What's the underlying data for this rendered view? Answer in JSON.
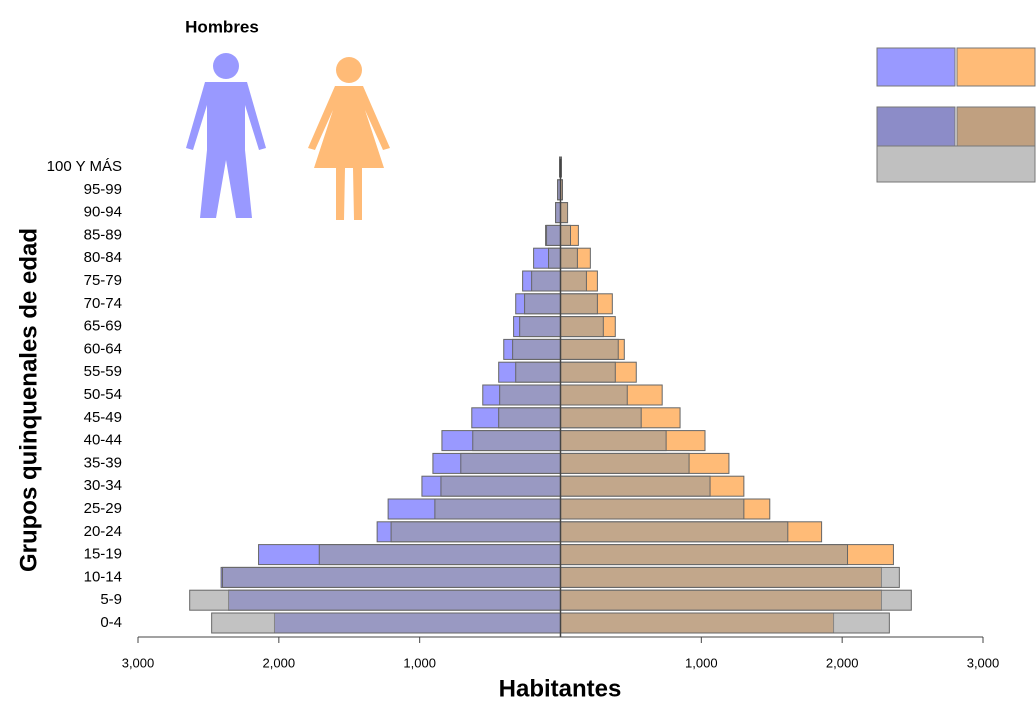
{
  "chart_data": {
    "type": "pyramid",
    "title": "Hombres",
    "x_label": "Habitantes",
    "y_label": "Grupos quinquenales de edad",
    "categories": [
      "0-4",
      "5-9",
      "10-14",
      "15-19",
      "20-24",
      "25-29",
      "30-34",
      "35-39",
      "40-44",
      "45-49",
      "50-54",
      "55-59",
      "60-64",
      "65-69",
      "70-74",
      "75-79",
      "80-84",
      "85-89",
      "90-94",
      "95-99",
      "100 Y MÁS"
    ],
    "series": [
      {
        "side": "left",
        "color": "#9999ff",
        "opacity": 1,
        "values": [
          2031,
          2357,
          2410,
          2144,
          1302,
          1224,
          984,
          906,
          842,
          630,
          552,
          439,
          403,
          333,
          318,
          269,
          191,
          106,
          35,
          21,
          7
        ]
      },
      {
        "side": "right",
        "color": "#ffbb77",
        "opacity": 1,
        "values": [
          1939,
          2279,
          2279,
          2364,
          1854,
          1486,
          1302,
          1196,
          1026,
          849,
          722,
          538,
          453,
          389,
          368,
          262,
          212,
          127,
          50,
          14,
          7
        ]
      },
      {
        "side": "left",
        "color": "#999999",
        "opacity": 0.6,
        "values": [
          2477,
          2633,
          2400,
          1713,
          1203,
          892,
          849,
          708,
          623,
          439,
          432,
          318,
          340,
          290,
          255,
          205,
          85,
          99,
          35,
          20,
          7
        ]
      },
      {
        "side": "right",
        "color": "#999999",
        "opacity": 0.6,
        "values": [
          2335,
          2491,
          2406,
          2038,
          1614,
          1302,
          1062,
          913,
          750,
          573,
          474,
          389,
          410,
          304,
          262,
          184,
          120,
          71,
          50,
          14,
          7
        ]
      }
    ],
    "xlim": [
      -3000,
      3000
    ],
    "xticks": [
      {
        "value": -3000,
        "label": "3,000"
      },
      {
        "value": -2000,
        "label": "2,000"
      },
      {
        "value": -1000,
        "label": "1,000"
      },
      {
        "value": 1000,
        "label": "1,000"
      },
      {
        "value": 2000,
        "label": "2,000"
      },
      {
        "value": 3000,
        "label": "3,000"
      }
    ]
  }
}
